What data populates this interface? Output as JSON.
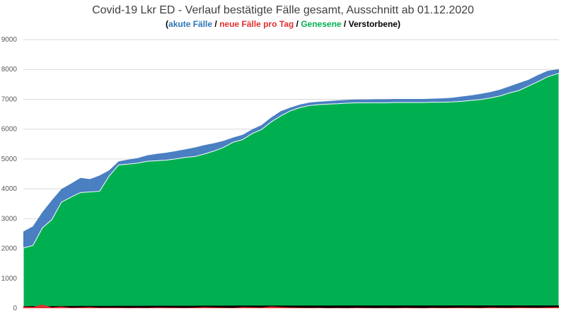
{
  "chart_data": {
    "type": "area",
    "title": "Covid-19 Lkr ED - Verlauf bestätigte Fälle gesamt, Ausschnitt ab 01.12.2020",
    "subtitle_parts": [
      {
        "text": "(",
        "color": "#000000"
      },
      {
        "text": "akute Fälle",
        "color": "#2e75b6"
      },
      {
        "text": " / ",
        "color": "#000000"
      },
      {
        "text": "neue Fälle pro Tag",
        "color": "#e03030"
      },
      {
        "text": " / ",
        "color": "#000000"
      },
      {
        "text": "Genesene",
        "color": "#00b050"
      },
      {
        "text": " / ",
        "color": "#000000"
      },
      {
        "text": "Verstorbene",
        "color": "#000000"
      },
      {
        "text": ")",
        "color": "#000000"
      }
    ],
    "xlabel": "",
    "ylabel": "",
    "ylim": [
      0,
      9000
    ],
    "yticks": [
      "0",
      "1000",
      "2000",
      "3000",
      "4000",
      "5000",
      "6000",
      "7000",
      "8000",
      "9000"
    ],
    "grid": true,
    "stacked": true,
    "x": [
      0,
      5,
      10,
      15,
      20,
      25,
      30,
      35,
      40,
      45,
      50,
      55,
      60,
      65,
      70,
      75,
      80,
      85,
      90,
      95,
      100,
      105,
      110,
      115,
      120,
      125,
      130,
      135,
      140,
      145,
      150,
      155,
      160,
      165,
      170,
      175,
      180,
      185,
      190,
      195,
      200,
      205,
      210,
      215,
      220,
      225,
      230,
      235,
      240,
      245,
      250,
      255,
      260,
      265,
      270,
      275,
      281
    ],
    "series": [
      {
        "name": "Verstorbene",
        "color": "#000000",
        "values": [
          70,
          70,
          72,
          72,
          74,
          74,
          76,
          76,
          78,
          78,
          80,
          80,
          80,
          82,
          82,
          82,
          84,
          84,
          84,
          86,
          86,
          86,
          88,
          88,
          88,
          88,
          90,
          90,
          90,
          90,
          90,
          90,
          90,
          92,
          92,
          92,
          92,
          92,
          92,
          92,
          92,
          92,
          92,
          92,
          92,
          92,
          92,
          92,
          92,
          92,
          92,
          92,
          92,
          92,
          92,
          92,
          92
        ]
      },
      {
        "name": "Genesene",
        "color": "#00b050",
        "values": [
          1950,
          2030,
          2620,
          2900,
          3480,
          3650,
          3800,
          3820,
          3840,
          4350,
          4720,
          4750,
          4780,
          4840,
          4860,
          4880,
          4920,
          4970,
          5000,
          5080,
          5180,
          5300,
          5470,
          5560,
          5760,
          5900,
          6150,
          6350,
          6520,
          6630,
          6700,
          6730,
          6750,
          6760,
          6780,
          6790,
          6790,
          6790,
          6790,
          6800,
          6800,
          6800,
          6800,
          6810,
          6810,
          6820,
          6840,
          6870,
          6900,
          6950,
          7020,
          7120,
          7200,
          7350,
          7500,
          7660,
          7780
        ]
      },
      {
        "name": "akute Fälle",
        "color": "#4a7fc1",
        "values": [
          550,
          640,
          530,
          650,
          440,
          450,
          490,
          430,
          530,
          190,
          120,
          150,
          170,
          200,
          230,
          250,
          260,
          270,
          300,
          300,
          260,
          220,
          160,
          160,
          140,
          150,
          150,
          160,
          110,
          100,
          100,
          100,
          100,
          110,
          110,
          110,
          110,
          120,
          120,
          120,
          120,
          120,
          120,
          120,
          130,
          140,
          160,
          170,
          190,
          200,
          210,
          220,
          250,
          210,
          220,
          200,
          140
        ]
      },
      {
        "name": "neue Fälle pro Tag",
        "color": "#e03030",
        "values": [
          60,
          40,
          120,
          30,
          60,
          20,
          30,
          40,
          20,
          25,
          20,
          15,
          20,
          15,
          30,
          25,
          20,
          15,
          25,
          40,
          30,
          20,
          15,
          40,
          35,
          25,
          60,
          40,
          30,
          20,
          15,
          20,
          10,
          15,
          10,
          20,
          15,
          10,
          15,
          10,
          20,
          15,
          10,
          20,
          15,
          20,
          25,
          20,
          15,
          30,
          25,
          20,
          30,
          25,
          20,
          30,
          35
        ]
      }
    ]
  }
}
